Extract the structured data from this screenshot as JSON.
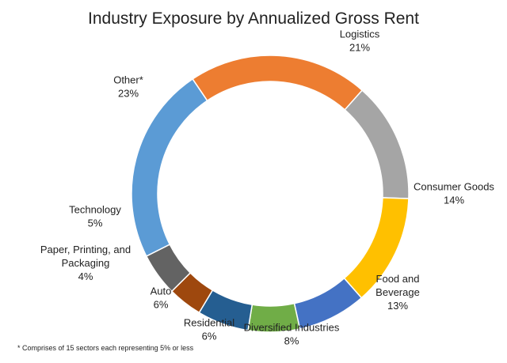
{
  "chart_data": {
    "type": "pie",
    "variant": "donut",
    "title": "Industry Exposure by Annualized Gross Rent",
    "start_angle_deg": 326,
    "direction": "clockwise",
    "slices": [
      {
        "label_lines": [
          "Logistics"
        ],
        "value_label": "21%",
        "value": 21,
        "color": "#ED7D31"
      },
      {
        "label_lines": [
          "Consumer Goods"
        ],
        "value_label": "14%",
        "value": 14,
        "color": "#A5A5A5"
      },
      {
        "label_lines": [
          "Food and",
          "Beverage"
        ],
        "value_label": "13%",
        "value": 13,
        "color": "#FFC000"
      },
      {
        "label_lines": [
          "Diversified Industries"
        ],
        "value_label": "8%",
        "value": 8,
        "color": "#4472C4"
      },
      {
        "label_lines": [
          "Residential"
        ],
        "value_label": "6%",
        "value": 6,
        "color": "#70AD47"
      },
      {
        "label_lines": [
          "Auto"
        ],
        "value_label": "6%",
        "value": 6,
        "color": "#255E91"
      },
      {
        "label_lines": [
          "Paper, Printing, and",
          "Packaging"
        ],
        "value_label": "4%",
        "value": 4,
        "color": "#9E480E"
      },
      {
        "label_lines": [
          "Technology"
        ],
        "value_label": "5%",
        "value": 5,
        "color": "#636363"
      },
      {
        "label_lines": [
          "Other*"
        ],
        "value_label": "23%",
        "value": 23,
        "color": "#5B9BD5"
      }
    ],
    "footnote": "* Comprises of 15 sectors each representing 5% or less"
  }
}
